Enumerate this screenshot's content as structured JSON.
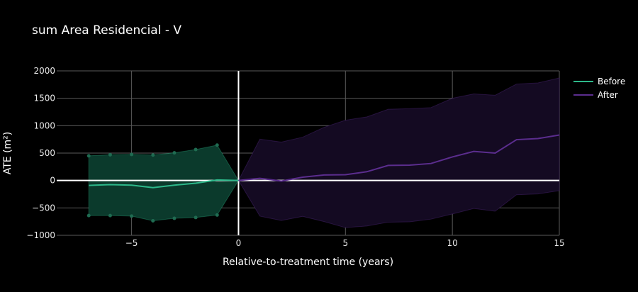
{
  "chart_data": {
    "type": "line",
    "title": "sum Area Residencial - V",
    "xlabel": "Relative-to-treatment time (years)",
    "ylabel": "ATE (m²)",
    "xlim": [
      -8.5,
      15
    ],
    "ylim": [
      -1000,
      2000
    ],
    "x_ticks": [
      -5,
      0,
      5,
      10,
      15
    ],
    "x_tick_labels": [
      "−5",
      "0",
      "5",
      "10",
      "15"
    ],
    "y_ticks": [
      -1000,
      -500,
      0,
      500,
      1000,
      1500,
      2000
    ],
    "y_tick_labels": [
      "−1000",
      "−500",
      "0",
      "500",
      "1000",
      "1500",
      "2000"
    ],
    "grid": true,
    "legend_position": "top-right",
    "series": [
      {
        "name": "Before",
        "color": "#2db88a",
        "fill": "#0b3a2c",
        "x": [
          -7,
          -6,
          -5,
          -4,
          -3,
          -2,
          -1,
          0
        ],
        "y": [
          -90,
          -75,
          -85,
          -130,
          -85,
          -50,
          10,
          0
        ],
        "upper": [
          450,
          470,
          475,
          465,
          505,
          565,
          645,
          0
        ],
        "lower": [
          -640,
          -640,
          -650,
          -735,
          -690,
          -675,
          -630,
          0
        ]
      },
      {
        "name": "After",
        "color": "#5b2d8e",
        "fill": "#140a22",
        "x": [
          0,
          1,
          2,
          3,
          4,
          5,
          6,
          7,
          8,
          9,
          10,
          11,
          12,
          13,
          14,
          15
        ],
        "y": [
          0,
          40,
          -10,
          60,
          100,
          105,
          160,
          275,
          280,
          310,
          430,
          530,
          500,
          745,
          765,
          830
        ],
        "upper": [
          0,
          755,
          700,
          790,
          970,
          1100,
          1160,
          1300,
          1310,
          1330,
          1500,
          1580,
          1555,
          1760,
          1780,
          1870
        ],
        "lower": [
          0,
          -650,
          -730,
          -655,
          -750,
          -860,
          -830,
          -760,
          -755,
          -705,
          -610,
          -510,
          -560,
          -260,
          -245,
          -185
        ]
      }
    ]
  }
}
